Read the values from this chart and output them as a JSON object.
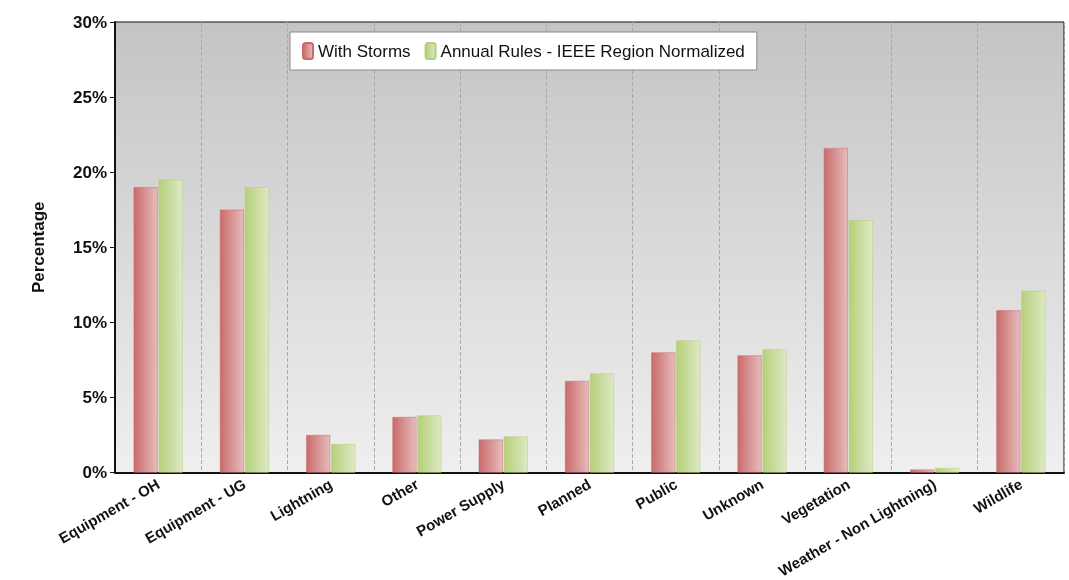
{
  "chart_data": {
    "type": "bar",
    "categories": [
      "Equipment - OH",
      "Equipment - UG",
      "Lightning",
      "Other",
      "Power Supply",
      "Planned",
      "Public",
      "Unknown",
      "Vegetation",
      "Weather - Non Lightning)",
      "Wildlife"
    ],
    "series": [
      {
        "name": "With Storms",
        "color": "#c96b6b",
        "values": [
          19.0,
          17.5,
          2.5,
          3.7,
          2.2,
          6.1,
          8.0,
          7.8,
          21.6,
          0.2,
          10.8
        ]
      },
      {
        "name": "Annual Rules - IEEE Region Normalized",
        "color": "#b5cf7a",
        "values": [
          19.5,
          19.0,
          1.9,
          3.8,
          2.4,
          6.6,
          8.8,
          8.2,
          16.8,
          0.3,
          12.1
        ]
      }
    ],
    "ylabel": "Percentage",
    "ylim": [
      0,
      30
    ],
    "yticks": [
      {
        "value": 0,
        "label": "0%"
      },
      {
        "value": 5,
        "label": "5%"
      },
      {
        "value": 10,
        "label": "10%"
      },
      {
        "value": 15,
        "label": "15%"
      },
      {
        "value": 20,
        "label": "20%"
      },
      {
        "value": 25,
        "label": "25%"
      },
      {
        "value": 30,
        "label": "30%"
      }
    ],
    "grid": "x",
    "legend": "top"
  }
}
